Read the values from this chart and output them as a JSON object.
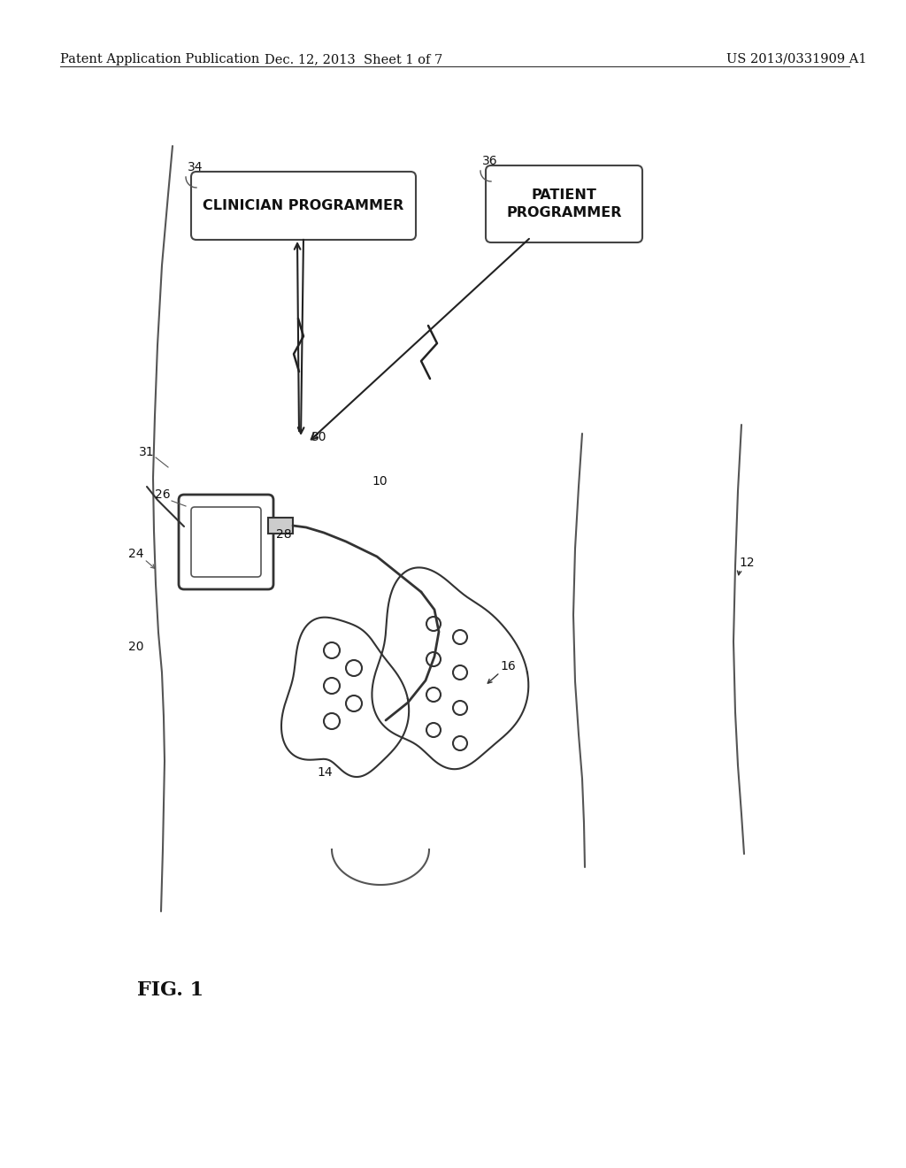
{
  "bg_color": "#ffffff",
  "header_left": "Patent Application Publication",
  "header_mid": "Dec. 12, 2013  Sheet 1 of 7",
  "header_right": "US 2013/0331909 A1",
  "fig_label": "FIG. 1",
  "label_34": "34",
  "label_36": "36",
  "label_31": "31",
  "label_26": "26",
  "label_30": "30",
  "label_10": "10",
  "label_28": "28",
  "label_24": "24",
  "label_20": "20",
  "label_14": "14",
  "label_16": "16",
  "label_12": "12",
  "cp_text": "CLINICIAN PROGRAMMER",
  "pp_text": "PATIENT\nPROGRAMMER"
}
